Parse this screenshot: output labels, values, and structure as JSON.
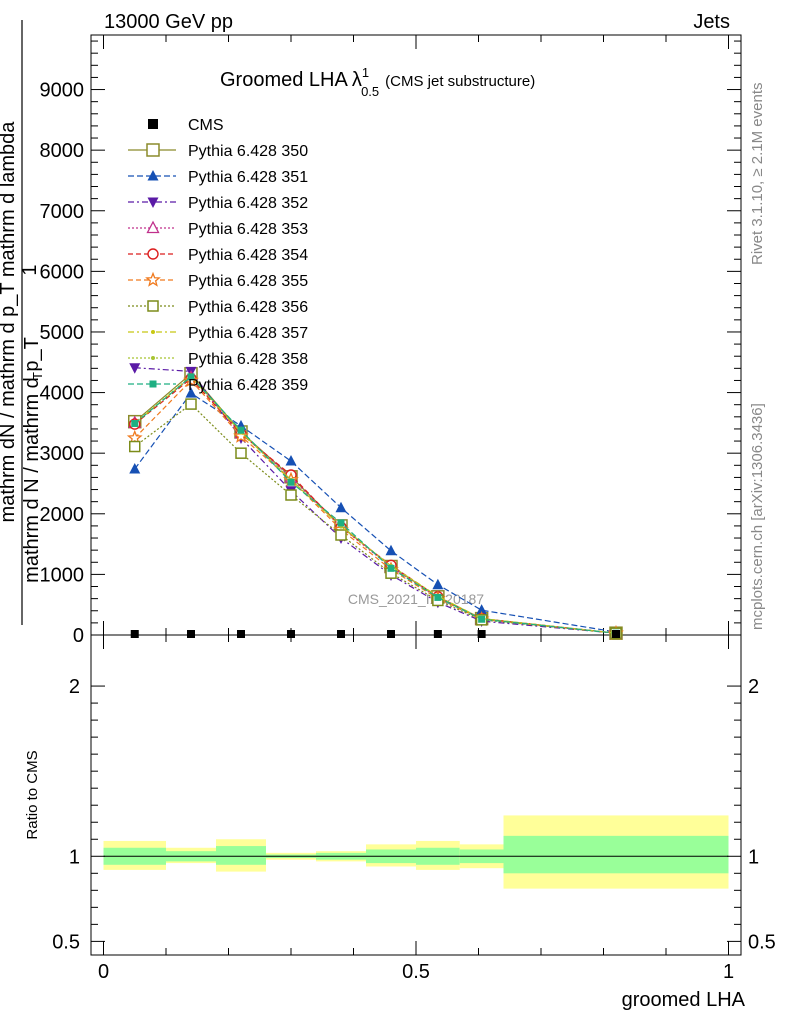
{
  "header": {
    "left": "13000 GeV pp",
    "right": "Jets"
  },
  "side": {
    "rivet": "Rivet 3.1.10, ≥ 2.1M events",
    "site": "mcplots.cern.ch [arXiv:1306.3436]"
  },
  "watermark": "CMS_2021_I1920187",
  "chart_data": {
    "type": "line",
    "title": "Groomed LHA",
    "title_symbol": "λ",
    "title_sup": "1",
    "title_sub": "0.5",
    "title_note": "(CMS jet substructure)",
    "ylabel_top": "1",
    "ylabel_numerator": "mathrm dN / mathrm d p_T mathrm d lambda",
    "ylabel_denominator": "mathrm d N / mathrm d p_T",
    "ylabel_sub": "T",
    "xlabel": "groomed LHA",
    "ratio_label": "Ratio to CMS",
    "xlim": [
      -0.02,
      1.02
    ],
    "ylim": [
      0,
      9900
    ],
    "ratio_ylim": [
      0.42,
      2.3
    ],
    "y_ticks": [
      {
        "v": 0,
        "label": "0"
      },
      {
        "v": 1000,
        "label": "1000"
      },
      {
        "v": 2000,
        "label": "2000"
      },
      {
        "v": 3000,
        "label": "3000"
      },
      {
        "v": 4000,
        "label": "4000"
      },
      {
        "v": 5000,
        "label": "5000"
      },
      {
        "v": 6000,
        "label": "6000"
      },
      {
        "v": 7000,
        "label": "7000"
      },
      {
        "v": 8000,
        "label": "8000"
      },
      {
        "v": 9000,
        "label": "9000"
      }
    ],
    "x_ticks": [
      {
        "v": 0,
        "label": "0"
      },
      {
        "v": 0.5,
        "label": "0.5"
      },
      {
        "v": 1,
        "label": "1"
      }
    ],
    "ratio_ticks": [
      {
        "v": 0.5,
        "label": "0.5"
      },
      {
        "v": 1,
        "label": "1"
      },
      {
        "v": 2,
        "label": "2"
      }
    ],
    "bins": [
      [
        0,
        0.1
      ],
      [
        0.1,
        0.18
      ],
      [
        0.18,
        0.26
      ],
      [
        0.26,
        0.34
      ],
      [
        0.34,
        0.42
      ],
      [
        0.42,
        0.5
      ],
      [
        0.5,
        0.57
      ],
      [
        0.57,
        0.64
      ],
      [
        0.64,
        1.0
      ]
    ],
    "x": [
      0.05,
      0.14,
      0.22,
      0.3,
      0.38,
      0.46,
      0.535,
      0.605,
      0.82
    ],
    "data": {
      "name": "CMS",
      "values": [
        0,
        0,
        0,
        0,
        0,
        0,
        0,
        0,
        0
      ]
    },
    "ratio_band_inner": [
      [
        0.95,
        1.05
      ],
      [
        0.97,
        1.03
      ],
      [
        0.95,
        1.06
      ],
      [
        0.99,
        1.01
      ],
      [
        0.98,
        1.02
      ],
      [
        0.96,
        1.04
      ],
      [
        0.95,
        1.05
      ],
      [
        0.96,
        1.04
      ],
      [
        0.9,
        1.12
      ]
    ],
    "ratio_band_outer": [
      [
        0.92,
        1.09
      ],
      [
        0.96,
        1.05
      ],
      [
        0.91,
        1.1
      ],
      [
        0.98,
        1.02
      ],
      [
        0.97,
        1.03
      ],
      [
        0.94,
        1.07
      ],
      [
        0.92,
        1.09
      ],
      [
        0.93,
        1.07
      ],
      [
        0.81,
        1.24
      ]
    ],
    "series": [
      {
        "name": "Pythia 6.428 350",
        "color": "#8b8b2b",
        "dash": "",
        "marker": "square-open",
        "values": [
          3520,
          4310,
          3350,
          2610,
          1800,
          1130,
          630,
          270,
          30
        ]
      },
      {
        "name": "Pythia 6.428 351",
        "color": "#1650b4",
        "dash": "6,3",
        "marker": "triangle-up",
        "values": [
          2740,
          3990,
          3450,
          2870,
          2100,
          1390,
          830,
          410,
          50
        ]
      },
      {
        "name": "Pythia 6.428 352",
        "color": "#5a1aa6",
        "dash": "6,3,2,3",
        "marker": "triangle-down",
        "values": [
          4410,
          4350,
          3250,
          2380,
          1600,
          990,
          540,
          230,
          30
        ]
      },
      {
        "name": "Pythia 6.428 353",
        "color": "#c0308c",
        "dash": "2,2",
        "marker": "triangle-up-open",
        "values": [
          3500,
          4250,
          3330,
          2600,
          1780,
          1120,
          620,
          260,
          30
        ]
      },
      {
        "name": "Pythia 6.428 354",
        "color": "#dc1e1e",
        "dash": "5,3",
        "marker": "circle-open",
        "values": [
          3480,
          4230,
          3320,
          2640,
          1780,
          1150,
          630,
          270,
          30
        ]
      },
      {
        "name": "Pythia 6.428 355",
        "color": "#f07a1e",
        "dash": "5,3",
        "marker": "star-open",
        "values": [
          3250,
          4200,
          3280,
          2560,
          1740,
          1080,
          600,
          260,
          30
        ]
      },
      {
        "name": "Pythia 6.428 356",
        "color": "#7c8c1a",
        "dash": "2,2",
        "marker": "square-open-small",
        "values": [
          3110,
          3810,
          3000,
          2310,
          1650,
          1020,
          570,
          250,
          30
        ]
      },
      {
        "name": "Pythia 6.428 357",
        "color": "#c8c814",
        "dash": "6,3,2,3",
        "marker": "dot",
        "values": [
          3490,
          4260,
          3340,
          2560,
          1790,
          1140,
          640,
          270,
          30
        ]
      },
      {
        "name": "Pythia 6.428 358",
        "color": "#a8c432",
        "dash": "2,2",
        "marker": "dot",
        "values": [
          3500,
          4270,
          3350,
          2560,
          1790,
          1140,
          630,
          270,
          30
        ]
      },
      {
        "name": "Pythia 6.428 359",
        "color": "#1eaf82",
        "dash": "6,3",
        "marker": "square",
        "values": [
          3490,
          4260,
          3380,
          2520,
          1850,
          1100,
          620,
          260,
          30
        ]
      }
    ]
  }
}
